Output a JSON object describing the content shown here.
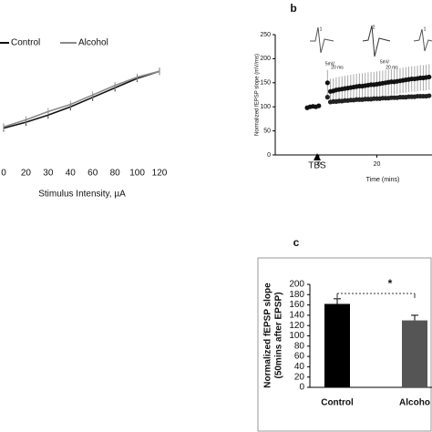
{
  "chart_data": [
    {
      "type": "line",
      "xlabel": "Stimulus Intensity, µA",
      "categories": [
        "0",
        "20",
        "30",
        "40",
        "60",
        "80",
        "100",
        "120"
      ],
      "ylim": [
        0,
        100
      ],
      "series": [
        {
          "name": "Control",
          "color": "#111111",
          "values": [
            38,
            43,
            49,
            56,
            64,
            72,
            80,
            86
          ]
        },
        {
          "name": "Alcohol",
          "color": "#8a8a8a",
          "values": [
            39,
            45,
            52,
            58,
            66,
            74,
            81,
            86
          ]
        }
      ]
    },
    {
      "type": "scatter",
      "panel": "b",
      "ylabel": "Normalized fEPSP slope (mV/ms)",
      "xlabel": "Time (mins)",
      "annotation": "TBS",
      "inset_labels": [
        "1",
        "5mV",
        "20 ms",
        "2",
        "5mV",
        "20 ms",
        "1"
      ],
      "xlim": [
        -15,
        39
      ],
      "xticks": [
        0,
        20
      ],
      "ylim": [
        0,
        250
      ],
      "yticks": [
        0,
        50,
        100,
        150,
        200,
        250
      ],
      "series": [
        {
          "color": "#111111",
          "x": [
            -4,
            -3,
            -2,
            -1,
            0
          ],
          "values": [
            98,
            100,
            101,
            100,
            102
          ]
        },
        {
          "color": "#111111",
          "x": [
            3,
            4,
            5,
            6,
            7,
            8,
            9,
            10,
            11,
            12,
            13,
            14,
            15,
            16,
            17,
            18,
            19,
            20,
            21,
            22,
            23,
            24,
            25,
            26,
            27,
            28,
            29,
            30,
            31,
            32,
            33,
            34,
            35,
            36,
            37,
            38
          ],
          "values": [
            150,
            132,
            133,
            135,
            136,
            137,
            138,
            139,
            140,
            141,
            142,
            143,
            143,
            144,
            145,
            146,
            146,
            147,
            148,
            149,
            150,
            151,
            152,
            152,
            153,
            154,
            155,
            156,
            157,
            158,
            158,
            159,
            160,
            160,
            161,
            162
          ]
        },
        {
          "color": "#222222",
          "x": [
            3,
            4,
            5,
            6,
            7,
            8,
            9,
            10,
            11,
            12,
            13,
            14,
            15,
            16,
            17,
            18,
            19,
            20,
            21,
            22,
            23,
            24,
            25,
            26,
            27,
            28,
            29,
            30,
            31,
            32,
            33,
            34,
            35,
            36,
            37,
            38
          ],
          "values": [
            120,
            110,
            111,
            111,
            112,
            112,
            113,
            113,
            114,
            114,
            115,
            115,
            115,
            116,
            116,
            116,
            117,
            117,
            117,
            118,
            118,
            118,
            119,
            119,
            119,
            120,
            120,
            120,
            121,
            121,
            121,
            122,
            122,
            122,
            122,
            123
          ]
        }
      ]
    },
    {
      "type": "bar",
      "panel": "c",
      "ylabel": [
        "Normalized fEPSP slope",
        "(50mins after EPSP)"
      ],
      "annotation": "*",
      "categories": [
        "Control",
        "Alcoho"
      ],
      "values": [
        162,
        130
      ],
      "errors": [
        10,
        10
      ],
      "colors": [
        "#000000",
        "#555555"
      ],
      "ylim": [
        0,
        200
      ],
      "yticks": [
        0,
        20,
        40,
        60,
        80,
        100,
        120,
        140,
        160,
        180,
        200
      ]
    }
  ]
}
